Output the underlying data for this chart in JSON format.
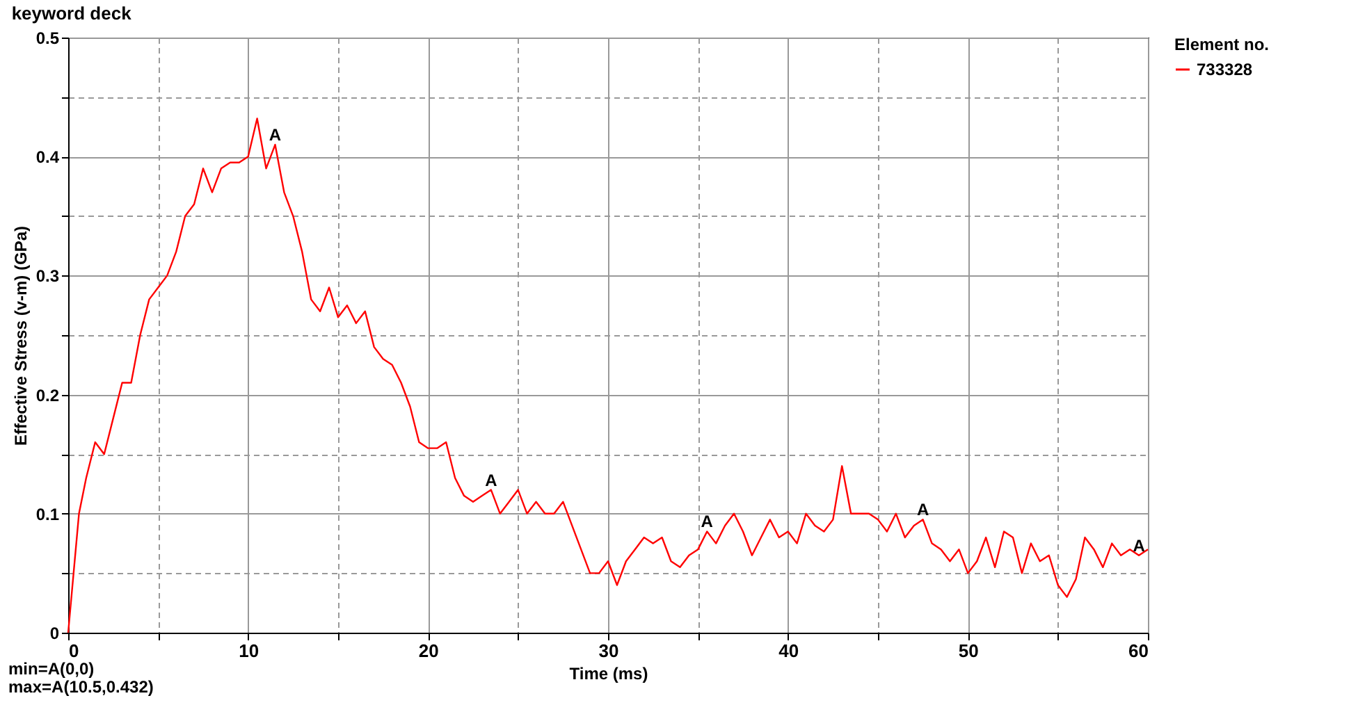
{
  "chart_data": {
    "type": "line",
    "title": "keyword deck",
    "xlabel": "Time (ms)",
    "ylabel": "Effective Stress (v-m) (GPa)",
    "legend_title": "Element no.",
    "legend": "top right",
    "grid": true,
    "line_style": "solid",
    "marker": "none",
    "xlim": [
      0,
      60
    ],
    "xticks": [
      0,
      {
        "value": 5,
        "label": null
      },
      10,
      {
        "value": 15,
        "label": null
      },
      20,
      {
        "value": 25,
        "label": null
      },
      30,
      {
        "value": 35,
        "label": null
      },
      40,
      {
        "value": 45,
        "label": null
      },
      50,
      {
        "value": 55,
        "label": null
      },
      60
    ],
    "ylim": [
      0,
      0.5
    ],
    "yticks": [
      0,
      {
        "value": 0.05,
        "label": null
      },
      0.1,
      {
        "value": 0.15,
        "label": null
      },
      0.2,
      {
        "value": 0.25,
        "label": null
      },
      0.3,
      {
        "value": 0.35,
        "label": null
      },
      0.4,
      {
        "value": 0.45,
        "label": null
      },
      0.5
    ],
    "x": [
      0,
      0.3,
      0.6,
      1,
      1.5,
      2,
      2.5,
      3,
      3.5,
      4,
      4.5,
      5,
      5.5,
      6,
      6.5,
      7,
      7.5,
      8,
      8.5,
      9,
      9.5,
      10,
      10.5,
      11,
      11.5,
      12,
      12.5,
      13,
      13.5,
      14,
      14.5,
      15,
      15.5,
      16,
      16.5,
      17,
      17.5,
      18,
      18.5,
      19,
      19.5,
      20,
      20.5,
      21,
      21.5,
      22,
      22.5,
      23,
      23.5,
      24,
      24.5,
      25,
      25.5,
      26,
      26.5,
      27,
      27.5,
      28,
      28.5,
      29,
      29.5,
      30,
      30.5,
      31,
      31.5,
      32,
      32.5,
      33,
      33.5,
      34,
      34.5,
      35,
      35.5,
      36,
      36.5,
      37,
      37.5,
      38,
      38.5,
      39,
      39.5,
      40,
      40.5,
      41,
      41.5,
      42,
      42.5,
      43,
      43.5,
      44,
      44.5,
      45,
      45.5,
      46,
      46.5,
      47,
      47.5,
      48,
      48.5,
      49,
      49.5,
      50,
      50.5,
      51,
      51.5,
      52,
      52.5,
      53,
      53.5,
      54,
      54.5,
      55,
      55.5,
      56,
      56.5,
      57,
      57.5,
      58,
      58.5,
      59,
      59.5,
      60
    ],
    "series": [
      {
        "name": "733328",
        "color": "#ff0000",
        "values": [
          0,
          0.05,
          0.1,
          0.13,
          0.16,
          0.15,
          0.18,
          0.21,
          0.21,
          0.25,
          0.28,
          0.29,
          0.3,
          0.32,
          0.35,
          0.36,
          0.39,
          0.37,
          0.39,
          0.395,
          0.395,
          0.4,
          0.432,
          0.39,
          0.41,
          0.37,
          0.35,
          0.32,
          0.28,
          0.27,
          0.29,
          0.265,
          0.275,
          0.26,
          0.27,
          0.24,
          0.23,
          0.225,
          0.21,
          0.19,
          0.16,
          0.155,
          0.155,
          0.16,
          0.13,
          0.115,
          0.11,
          0.115,
          0.12,
          0.1,
          0.11,
          0.12,
          0.1,
          0.11,
          0.1,
          0.1,
          0.11,
          0.09,
          0.07,
          0.05,
          0.05,
          0.06,
          0.04,
          0.06,
          0.07,
          0.08,
          0.075,
          0.08,
          0.06,
          0.055,
          0.065,
          0.07,
          0.085,
          0.075,
          0.09,
          0.1,
          0.085,
          0.065,
          0.08,
          0.095,
          0.08,
          0.085,
          0.075,
          0.1,
          0.09,
          0.085,
          0.095,
          0.14,
          0.1,
          0.1,
          0.1,
          0.095,
          0.085,
          0.1,
          0.08,
          0.09,
          0.095,
          0.075,
          0.07,
          0.06,
          0.07,
          0.05,
          0.06,
          0.08,
          0.055,
          0.085,
          0.08,
          0.05,
          0.075,
          0.06,
          0.065,
          0.04,
          0.03,
          0.045,
          0.08,
          0.07,
          0.055,
          0.075,
          0.065,
          0.07,
          0.065,
          0.07
        ]
      }
    ],
    "annotations": [
      {
        "text": "A",
        "x": 11.5,
        "y": 0.41
      },
      {
        "text": "A",
        "x": 23.5,
        "y": 0.12
      },
      {
        "text": "A",
        "x": 35.5,
        "y": 0.085
      },
      {
        "text": "A",
        "x": 47.5,
        "y": 0.095
      },
      {
        "text": "A",
        "x": 59.5,
        "y": 0.065
      },
      "min=A(0,0)",
      "max=A(10.5,0.432)"
    ]
  }
}
